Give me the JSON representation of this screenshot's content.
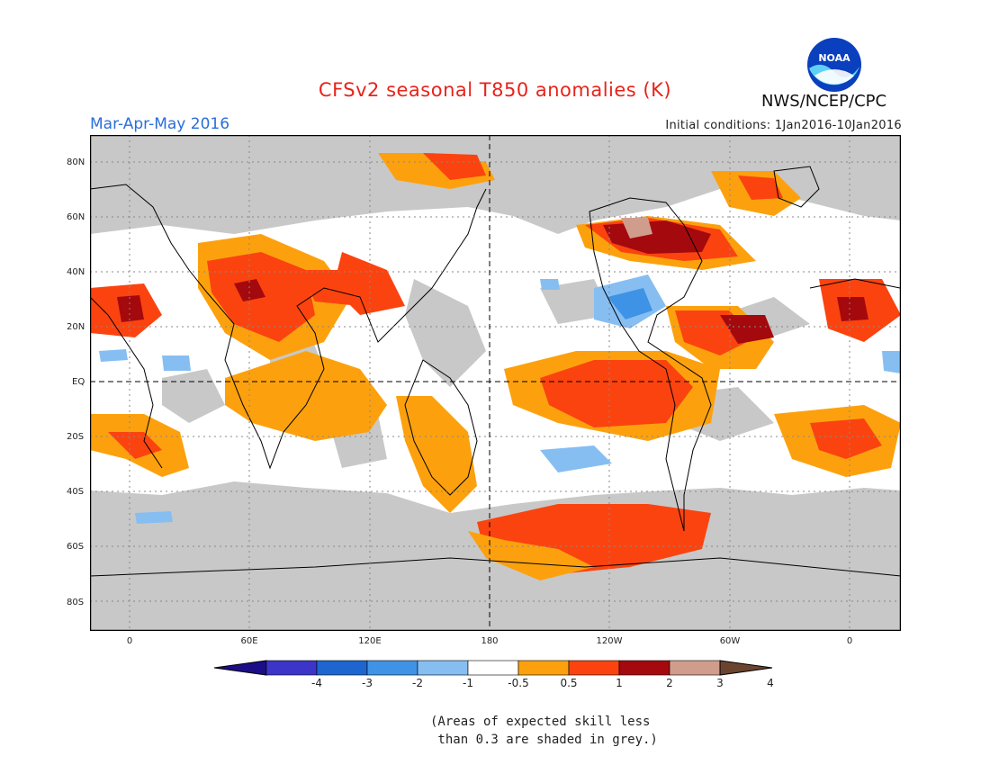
{
  "title": "CFSv2 seasonal T850 anomalies (K)",
  "season": "Mar-Apr-May 2016",
  "initial_conditions": "Initial conditions: 1Jan2016-10Jan2016",
  "agency": "NWS/NCEP/CPC",
  "logo": {
    "text": "NOAA",
    "icon": "noaa-logo-icon"
  },
  "lat_labels": [
    "80N",
    "60N",
    "40N",
    "20N",
    "EQ",
    "20S",
    "40S",
    "60S",
    "80S"
  ],
  "lon_labels": [
    "0",
    "60E",
    "120E",
    "180",
    "120W",
    "60W",
    "0"
  ],
  "colorbar": {
    "ticks": [
      "-4",
      "-3",
      "-2",
      "-1",
      "-0.5",
      "0.5",
      "1",
      "2",
      "3",
      "4"
    ],
    "colors": [
      "#1c0e87",
      "#3c35c8",
      "#1d66cf",
      "#3f93e6",
      "#86bef2",
      "#ffffff",
      "#fca10d",
      "#fb430f",
      "#a4090e",
      "#d09d8c",
      "#6b4430"
    ]
  },
  "note": "(Areas of expected skill less\n than 0.3 are shaded in grey.)",
  "colors": {
    "title": "#e8231a",
    "season": "#2a6edb",
    "grey": "#c8c8c8"
  }
}
